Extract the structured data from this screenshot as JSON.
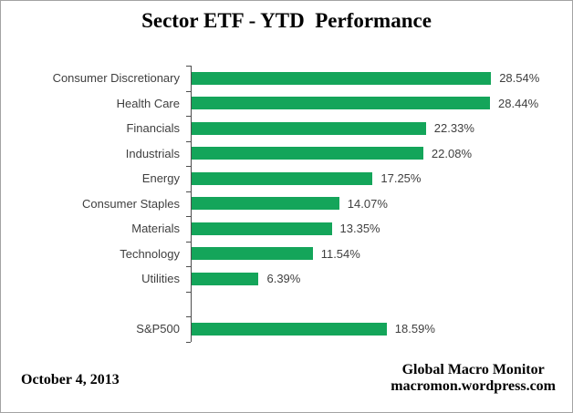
{
  "chart_data": {
    "type": "bar",
    "orientation": "horizontal",
    "title": "Sector ETF - YTD  Performance",
    "categories": [
      "Consumer Discretionary",
      "Health Care",
      "Financials",
      "Industrials",
      "Energy",
      "Consumer Staples",
      "Materials",
      "Technology",
      "Utilities",
      "S&P500"
    ],
    "values": [
      28.54,
      28.44,
      22.33,
      22.08,
      17.25,
      14.07,
      13.35,
      11.54,
      6.39,
      18.59
    ],
    "value_labels": [
      "28.54%",
      "28.44%",
      "22.33%",
      "22.08%",
      "17.25%",
      "14.07%",
      "13.35%",
      "11.54%",
      "6.39%",
      "18.59%"
    ],
    "gap_row_before_last": true,
    "xlim": [
      0,
      30
    ],
    "grid": false,
    "legend": false,
    "bar_color": "#14a55a",
    "axis_color": "#4d4d4d",
    "label_color": "#3f3f3f"
  },
  "footer": {
    "date": "October 4, 2013",
    "credit_line1": "Global Macro Monitor",
    "credit_line2": "macromon.wordpress.com"
  }
}
